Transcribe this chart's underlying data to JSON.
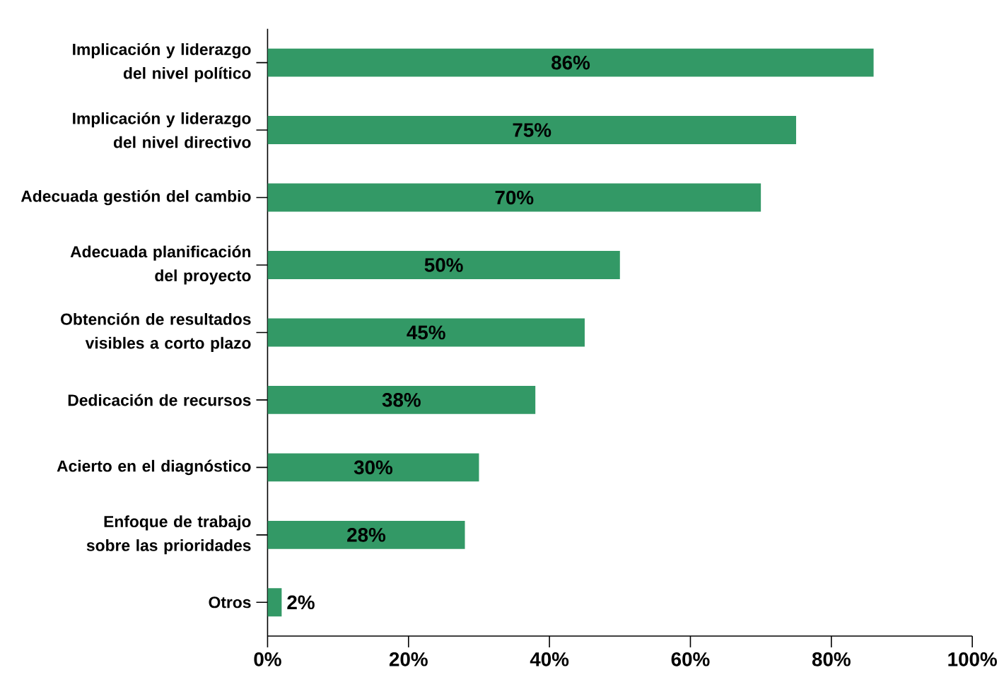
{
  "chart_data": {
    "type": "bar",
    "orientation": "horizontal",
    "categories": [
      "Implicación y liderazgo del nivel político",
      "Implicación y liderazgo del nivel directivo",
      "Adecuada gestión del cambio",
      "Adecuada planificación del proyecto",
      "Obtención de resultados visibles a corto plazo",
      "Dedicación de recursos",
      "Acierto en el diagnóstico",
      "Enfoque de trabajo sobre las prioridades",
      "Otros"
    ],
    "values": [
      86,
      75,
      70,
      50,
      45,
      38,
      30,
      28,
      2
    ],
    "value_labels": [
      "86%",
      "75%",
      "70%",
      "50%",
      "45%",
      "38%",
      "30%",
      "28%",
      "2%"
    ],
    "color": "#339966",
    "xlim": [
      0,
      100
    ],
    "xticks": [
      {
        "value": 0,
        "label": "0%"
      },
      {
        "value": 20,
        "label": "20%"
      },
      {
        "value": 40,
        "label": "40%"
      },
      {
        "value": 60,
        "label": "60%"
      },
      {
        "value": 80,
        "label": "80%"
      },
      {
        "value": 100,
        "label": "100%"
      }
    ],
    "grid": false
  }
}
